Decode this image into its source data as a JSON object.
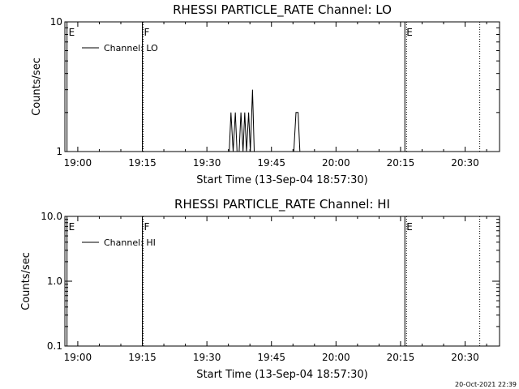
{
  "chart_data": [
    {
      "type": "line",
      "title": "RHESSI PARTICLE_RATE Channel: LO",
      "xlabel": "Start Time (13-Sep-04 18:57:30)",
      "ylabel": "Counts/sec",
      "y_scale": "log",
      "ylim": [
        1,
        10
      ],
      "y_ticks": [
        1,
        10
      ],
      "y_tick_labels": [
        "1",
        "10"
      ],
      "xlim": [
        "18:57",
        "20:38"
      ],
      "x_ticks": [
        "19:00",
        "19:15",
        "19:30",
        "19:45",
        "20:00",
        "20:15",
        "20:30"
      ],
      "legend": {
        "label": "Channel: LO",
        "position": "top-left"
      },
      "markers": [
        {
          "label": "E",
          "time": "18:57.5",
          "style": "solid"
        },
        {
          "label": "F",
          "time": "19:15",
          "style": "solid"
        },
        {
          "label": "E",
          "time": "20:16",
          "style": "solid"
        }
      ],
      "dotted_lines": [
        "19:15.2",
        "20:16.4",
        "20:33.4"
      ],
      "series": [
        {
          "x": [
            "19:35.2",
            "19:35.6",
            "19:36.1",
            "19:36.6",
            "19:37.0",
            "19:37.5",
            "19:37.9",
            "19:38.4",
            "19:38.8",
            "19:39.2",
            "19:39.7",
            "19:40.1",
            "19:40.6",
            "19:41.0",
            "19:41.4",
            "19:50.2",
            "19:50.7",
            "19:51.2",
            "19:51.6"
          ],
          "y": [
            1,
            2,
            1,
            2,
            1,
            1,
            2,
            1,
            2,
            1,
            2,
            1,
            3,
            1,
            1,
            1,
            2,
            2,
            1
          ]
        }
      ]
    },
    {
      "type": "line",
      "title": "RHESSI PARTICLE_RATE Channel: HI",
      "xlabel": "Start Time (13-Sep-04 18:57:30)",
      "ylabel": "Counts/sec",
      "y_scale": "log",
      "ylim": [
        0.1,
        10
      ],
      "y_ticks": [
        0.1,
        1,
        10
      ],
      "y_tick_labels": [
        "0.1",
        "1.0",
        "10.0"
      ],
      "xlim": [
        "18:57",
        "20:38"
      ],
      "x_ticks": [
        "19:00",
        "19:15",
        "19:30",
        "19:45",
        "20:00",
        "20:15",
        "20:30"
      ],
      "legend": {
        "label": "Channel: HI",
        "position": "top-left"
      },
      "markers": [
        {
          "label": "E",
          "time": "18:57.5",
          "style": "solid"
        },
        {
          "label": "F",
          "time": "19:15",
          "style": "solid"
        },
        {
          "label": "E",
          "time": "20:16",
          "style": "solid"
        }
      ],
      "dotted_lines": [
        "19:15.2",
        "20:16.4",
        "20:33.4"
      ],
      "series": [
        {
          "x": [],
          "y": []
        }
      ]
    }
  ],
  "footer": {
    "timestamp": "20-Oct-2021 22:39"
  }
}
